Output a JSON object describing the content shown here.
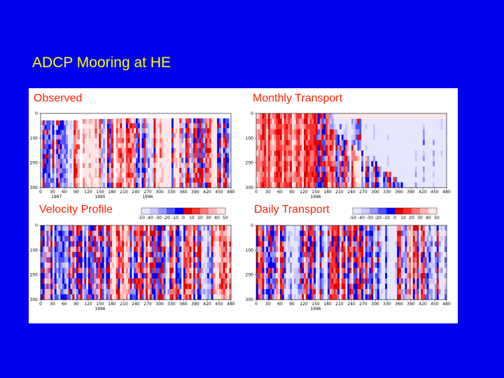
{
  "slide": {
    "title": "ADCP Mooring at HE"
  },
  "colors": {
    "background": "#0000f0",
    "title": "#ffff00",
    "panel_label": "#ff2000"
  },
  "chart_data": [
    {
      "type": "heatmap",
      "title": "Observed",
      "x_ticks": [
        0,
        30,
        60,
        90,
        120,
        150,
        180,
        210,
        240,
        270,
        300,
        330,
        360,
        390,
        420,
        450,
        480
      ],
      "y_ticks": [
        0,
        100,
        200,
        300
      ],
      "xlim": [
        0,
        480
      ],
      "ylim": [
        300,
        0
      ],
      "year_labels": [
        "1997",
        "1995",
        "1996"
      ]
    },
    {
      "type": "heatmap",
      "title": "Monthly Transport",
      "x_ticks": [
        0,
        30,
        60,
        90,
        120,
        150,
        180,
        210,
        240,
        270,
        300,
        330,
        360,
        390,
        420,
        450,
        480
      ],
      "y_ticks": [
        0,
        100,
        200,
        300
      ],
      "xlim": [
        0,
        480
      ],
      "ylim": [
        300,
        0
      ],
      "year_labels": [
        "1996"
      ]
    },
    {
      "type": "heatmap",
      "title": "Velocity Profile",
      "x_ticks": [
        0,
        30,
        60,
        90,
        120,
        150,
        180,
        210,
        240,
        270,
        300,
        330,
        360,
        390,
        420,
        450,
        480
      ],
      "y_ticks": [
        0,
        100,
        200,
        300
      ],
      "xlim": [
        0,
        480
      ],
      "ylim": [
        300,
        0
      ],
      "year_labels": [
        "1996"
      ]
    },
    {
      "type": "heatmap",
      "title": "Daily Transport",
      "x_ticks": [
        0,
        30,
        60,
        90,
        120,
        150,
        180,
        210,
        240,
        270,
        300,
        330,
        360,
        390,
        420,
        450,
        480
      ],
      "y_ticks": [
        0,
        100,
        200,
        300
      ],
      "xlim": [
        0,
        480
      ],
      "ylim": [
        300,
        0
      ],
      "year_labels": [
        "1996"
      ]
    }
  ],
  "colorbar": {
    "ticks": [
      -50,
      -40,
      -30,
      -20,
      -10,
      0,
      10,
      20,
      30,
      40,
      50
    ],
    "colors": [
      "#e6e6ff",
      "#c8c8ff",
      "#9696ff",
      "#5050ff",
      "#0000ff",
      "#e00000",
      "#ff3030",
      "#ff7878",
      "#ffb4b4",
      "#ffe6e6"
    ]
  }
}
